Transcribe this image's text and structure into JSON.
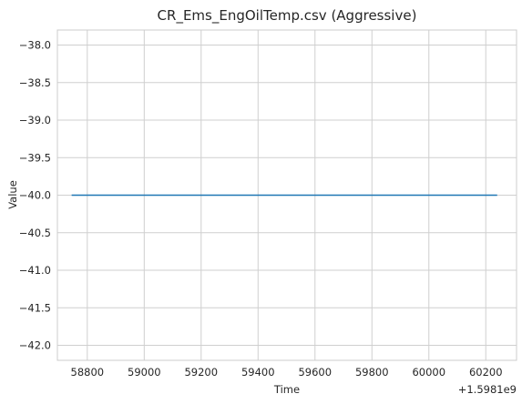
{
  "chart_data": {
    "type": "line",
    "title": "CR_Ems_EngOilTemp.csv (Aggressive)",
    "xlabel": "Time",
    "ylabel": "Value",
    "x_offset_label": "+1.5981e9",
    "xlim": [
      58695,
      60308
    ],
    "ylim": [
      -42.2,
      -37.8
    ],
    "x_ticks": [
      58800,
      59000,
      59200,
      59400,
      59600,
      59800,
      60000,
      60200
    ],
    "x_tick_labels": [
      "58800",
      "59000",
      "59200",
      "59400",
      "59600",
      "59800",
      "60000",
      "60200"
    ],
    "y_ticks": [
      -38.0,
      -38.5,
      -39.0,
      -39.5,
      -40.0,
      -40.5,
      -41.0,
      -41.5,
      -42.0
    ],
    "y_tick_labels": [
      "−38.0",
      "−38.5",
      "−39.0",
      "−39.5",
      "−40.0",
      "−40.5",
      "−41.0",
      "−41.5",
      "−42.0"
    ],
    "grid": true,
    "series": [
      {
        "color": "#1f77b4",
        "x": [
          58745,
          60240
        ],
        "y": [
          -40.0,
          -40.0
        ]
      }
    ]
  }
}
